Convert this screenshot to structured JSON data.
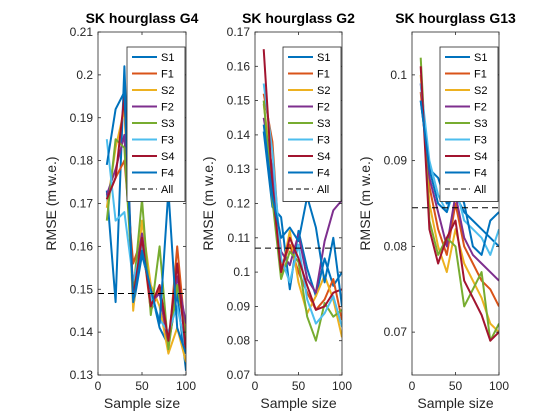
{
  "chart_data": [
    {
      "type": "line",
      "title": "SK hourglass G4",
      "xlabel": "Sample size",
      "ylabel": "RMSE (m w.e.)",
      "xlim": [
        0,
        100
      ],
      "ylim": [
        0.13,
        0.21
      ],
      "xticks": [
        0,
        50,
        100
      ],
      "yticks": [
        0.13,
        0.14,
        0.15,
        0.16,
        0.17,
        0.18,
        0.19,
        0.2,
        0.21
      ],
      "ytick_labels": [
        "0.13",
        "0.14",
        "0.15",
        "0.16",
        "0.17",
        "0.18",
        "0.19",
        "0.2",
        "0.21"
      ],
      "legend_position": "top-right",
      "x": [
        10,
        20,
        30,
        40,
        50,
        60,
        70,
        80,
        90,
        100
      ],
      "series": [
        {
          "name": "S1",
          "values": [
            0.173,
            0.147,
            0.202,
            0.146,
            0.158,
            0.15,
            0.141,
            0.137,
            0.149,
            0.131
          ]
        },
        {
          "name": "F1",
          "values": [
            0.171,
            0.176,
            0.18,
            0.156,
            0.162,
            0.145,
            0.15,
            0.136,
            0.16,
            0.138
          ]
        },
        {
          "name": "S2",
          "values": [
            0.169,
            0.183,
            0.192,
            0.145,
            0.166,
            0.151,
            0.146,
            0.135,
            0.141,
            0.133
          ]
        },
        {
          "name": "F2",
          "values": [
            0.172,
            0.178,
            0.186,
            0.15,
            0.163,
            0.147,
            0.149,
            0.137,
            0.153,
            0.142
          ]
        },
        {
          "name": "S3",
          "values": [
            0.166,
            0.185,
            0.183,
            0.149,
            0.171,
            0.144,
            0.16,
            0.136,
            0.151,
            0.139
          ]
        },
        {
          "name": "F3",
          "values": [
            0.185,
            0.166,
            0.168,
            0.152,
            0.16,
            0.148,
            0.143,
            0.14,
            0.146,
            0.136
          ]
        },
        {
          "name": "S4",
          "values": [
            0.171,
            0.176,
            0.195,
            0.148,
            0.162,
            0.146,
            0.151,
            0.138,
            0.156,
            0.135
          ]
        },
        {
          "name": "F4",
          "values": [
            0.179,
            0.192,
            0.196,
            0.147,
            0.159,
            0.15,
            0.142,
            0.173,
            0.141,
            0.135
          ]
        }
      ],
      "all_line": {
        "name": "All",
        "value": 0.149
      }
    },
    {
      "type": "line",
      "title": "SK hourglass G2",
      "xlabel": "Sample size",
      "ylabel": "RMSE (m w.e.)",
      "xlim": [
        0,
        100
      ],
      "ylim": [
        0.07,
        0.17
      ],
      "xticks": [
        0,
        50,
        100
      ],
      "yticks": [
        0.07,
        0.08,
        0.09,
        0.1,
        0.11,
        0.12,
        0.13,
        0.14,
        0.15,
        0.16,
        0.17
      ],
      "ytick_labels": [
        "0.07",
        "0.08",
        "0.09",
        "0.1",
        "0.11",
        "0.12",
        "0.13",
        "0.14",
        "0.15",
        "0.16",
        "0.17"
      ],
      "legend_position": "top-right",
      "x": [
        10,
        20,
        30,
        40,
        50,
        60,
        70,
        80,
        90,
        100
      ],
      "series": [
        {
          "name": "S1",
          "values": [
            0.141,
            0.119,
            0.116,
            0.095,
            0.112,
            0.101,
            0.093,
            0.104,
            0.096,
            0.1
          ]
        },
        {
          "name": "F1",
          "values": [
            0.152,
            0.138,
            0.101,
            0.108,
            0.1,
            0.094,
            0.089,
            0.092,
            0.098,
            0.086
          ]
        },
        {
          "name": "S2",
          "values": [
            0.149,
            0.128,
            0.099,
            0.112,
            0.097,
            0.088,
            0.093,
            0.099,
            0.092,
            0.081
          ]
        },
        {
          "name": "F2",
          "values": [
            0.145,
            0.13,
            0.106,
            0.102,
            0.111,
            0.098,
            0.094,
            0.109,
            0.118,
            0.121
          ]
        },
        {
          "name": "S3",
          "values": [
            0.15,
            0.121,
            0.098,
            0.106,
            0.103,
            0.087,
            0.08,
            0.091,
            0.087,
            0.089
          ]
        },
        {
          "name": "F3",
          "values": [
            0.155,
            0.135,
            0.104,
            0.097,
            0.108,
            0.092,
            0.085,
            0.088,
            0.093,
            0.084
          ]
        },
        {
          "name": "S4",
          "values": [
            0.165,
            0.125,
            0.1,
            0.11,
            0.104,
            0.096,
            0.089,
            0.09,
            0.094,
            0.095
          ]
        },
        {
          "name": "F4",
          "values": [
            0.143,
            0.122,
            0.11,
            0.113,
            0.109,
            0.122,
            0.113,
            0.097,
            0.11,
            0.09
          ]
        }
      ],
      "all_line": {
        "name": "All",
        "value": 0.107
      }
    },
    {
      "type": "line",
      "title": "SK hourglass G13",
      "xlabel": "Sample size",
      "ylabel": "RMSE (m w.e.)",
      "xlim": [
        0,
        100
      ],
      "ylim": [
        0.065,
        0.105
      ],
      "xticks": [
        0,
        50,
        100
      ],
      "yticks": [
        0.07,
        0.08,
        0.09,
        0.1
      ],
      "ytick_labels": [
        "0.07",
        "0.08",
        "0.09",
        "0.1"
      ],
      "legend_position": "top-right",
      "x": [
        10,
        20,
        30,
        40,
        50,
        60,
        70,
        80,
        90,
        100
      ],
      "series": [
        {
          "name": "S1",
          "values": [
            0.097,
            0.089,
            0.088,
            0.085,
            0.086,
            0.084,
            0.083,
            0.082,
            0.081,
            0.08
          ]
        },
        {
          "name": "F1",
          "values": [
            0.098,
            0.087,
            0.082,
            0.079,
            0.085,
            0.08,
            0.078,
            0.076,
            0.075,
            0.073
          ]
        },
        {
          "name": "S2",
          "values": [
            0.1,
            0.085,
            0.08,
            0.077,
            0.082,
            0.078,
            0.076,
            0.074,
            0.071,
            0.07
          ]
        },
        {
          "name": "F2",
          "values": [
            0.099,
            0.088,
            0.084,
            0.08,
            0.086,
            0.081,
            0.079,
            0.078,
            0.077,
            0.076
          ]
        },
        {
          "name": "S3",
          "values": [
            0.102,
            0.083,
            0.079,
            0.081,
            0.08,
            0.073,
            0.075,
            0.077,
            0.069,
            0.071
          ]
        },
        {
          "name": "F3",
          "values": [
            0.099,
            0.09,
            0.086,
            0.084,
            0.087,
            0.083,
            0.082,
            0.081,
            0.079,
            0.082
          ]
        },
        {
          "name": "S4",
          "values": [
            0.101,
            0.082,
            0.078,
            0.081,
            0.083,
            0.076,
            0.074,
            0.072,
            0.069,
            0.07
          ]
        },
        {
          "name": "F4",
          "values": [
            0.097,
            0.089,
            0.085,
            0.084,
            0.088,
            0.085,
            0.08,
            0.079,
            0.083,
            0.084
          ]
        }
      ],
      "all_line": {
        "name": "All",
        "value": 0.0845
      }
    }
  ],
  "series_colors": {
    "S1": "#0072BD",
    "F1": "#D95319",
    "S2": "#EDB120",
    "F2": "#7E2F8E",
    "S3": "#77AC30",
    "F3": "#4DBEEE",
    "S4": "#A2142F",
    "F4": "#0072BD",
    "All": "#000000"
  }
}
